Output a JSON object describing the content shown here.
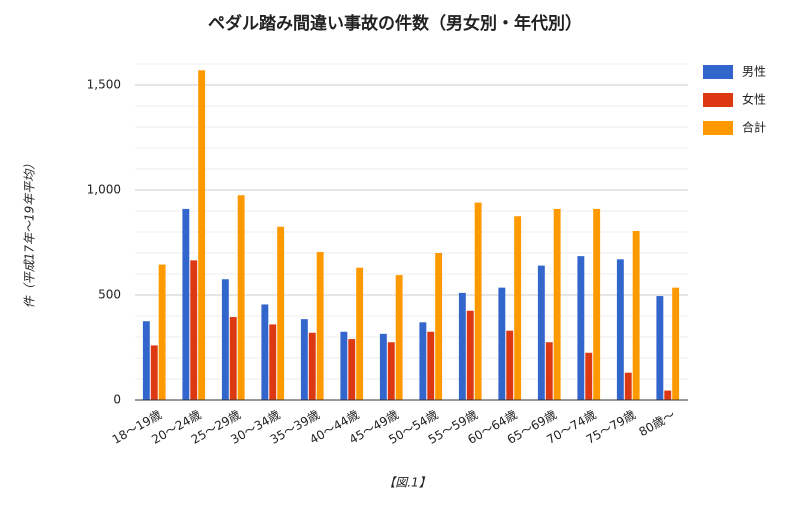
{
  "chart_data": {
    "type": "bar",
    "title": "ペダル踏み間違い事故の件数（男女別・年代別）",
    "y_label": "件（平成17年～19年平均）",
    "x_label": "【図.1】",
    "categories": [
      "18～19歳",
      "20～24歳",
      "25～29歳",
      "30～34歳",
      "35～39歳",
      "40～44歳",
      "45～49歳",
      "50～54歳",
      "55～59歳",
      "60～64歳",
      "65～69歳",
      "70～74歳",
      "75～79歳",
      "80歳～"
    ],
    "series": [
      {
        "name": "男性",
        "color": "#3366cc",
        "values": [
          375,
          910,
          575,
          455,
          385,
          325,
          315,
          370,
          510,
          535,
          640,
          685,
          670,
          495
        ]
      },
      {
        "name": "女性",
        "color": "#dc3912",
        "values": [
          260,
          665,
          395,
          360,
          320,
          290,
          275,
          325,
          425,
          330,
          275,
          225,
          130,
          45
        ]
      },
      {
        "name": "合計",
        "color": "#ff9900",
        "values": [
          645,
          1570,
          975,
          825,
          705,
          630,
          595,
          700,
          940,
          875,
          910,
          910,
          805,
          535
        ]
      }
    ],
    "ylim": [
      0,
      1600
    ],
    "yticks": [
      0,
      500,
      {
        "value": 1000,
        "label": "1,000"
      },
      {
        "value": 1500,
        "label": "1,500"
      }
    ],
    "minor_yticks": [
      100,
      200,
      300,
      400,
      600,
      700,
      800,
      900,
      1100,
      1200,
      1300,
      1400,
      1600
    ],
    "grid": true,
    "legend": "right"
  }
}
